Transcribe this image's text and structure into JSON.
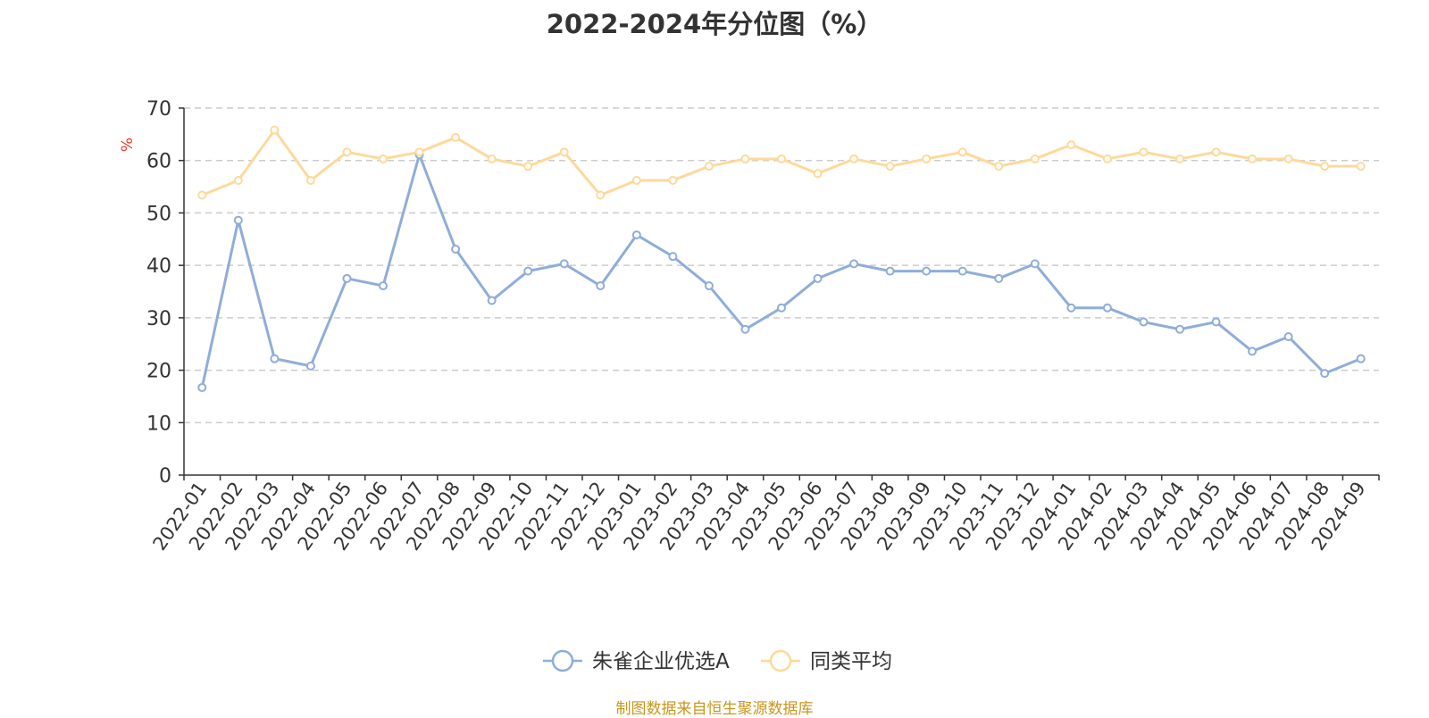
{
  "chart_data": {
    "type": "line",
    "title": "2022-2024年分位图（%）",
    "ylabel": "%",
    "xlabel": "",
    "ylim": [
      0,
      70
    ],
    "yticks": [
      0,
      10,
      20,
      30,
      40,
      50,
      60,
      70
    ],
    "grid": true,
    "legend_position": "bottom",
    "categories": [
      "2022-01",
      "2022-02",
      "2022-03",
      "2022-04",
      "2022-05",
      "2022-06",
      "2022-07",
      "2022-08",
      "2022-09",
      "2022-10",
      "2022-11",
      "2022-12",
      "2023-01",
      "2023-02",
      "2023-03",
      "2023-04",
      "2023-05",
      "2023-06",
      "2023-07",
      "2023-08",
      "2023-09",
      "2023-10",
      "2023-11",
      "2023-12",
      "2024-01",
      "2024-02",
      "2024-03",
      "2024-04",
      "2024-05",
      "2024-06",
      "2024-07",
      "2024-08",
      "2024-09"
    ],
    "series": [
      {
        "name": "朱雀企业优选A",
        "color": "#8fadd9",
        "values": [
          16.7,
          48.6,
          22.2,
          20.8,
          37.5,
          36.1,
          61.1,
          43.1,
          33.3,
          38.9,
          40.3,
          36.1,
          45.8,
          41.7,
          36.1,
          27.8,
          31.9,
          37.5,
          40.3,
          38.9,
          38.9,
          38.9,
          37.5,
          40.3,
          31.9,
          31.9,
          29.2,
          27.8,
          29.2,
          23.6,
          26.4,
          19.4,
          22.2
        ]
      },
      {
        "name": "同类平均",
        "color": "#fdd99a",
        "values": [
          53.4,
          56.2,
          65.8,
          56.2,
          61.6,
          60.3,
          61.6,
          64.4,
          60.3,
          58.9,
          61.6,
          53.4,
          56.2,
          56.2,
          58.9,
          60.3,
          60.3,
          57.5,
          60.3,
          58.9,
          60.3,
          61.6,
          58.9,
          60.3,
          63.0,
          60.3,
          61.6,
          60.3,
          61.6,
          60.3,
          60.3,
          58.9,
          58.9
        ]
      }
    ]
  },
  "source_note": "制图数据来自恒生聚源数据库"
}
